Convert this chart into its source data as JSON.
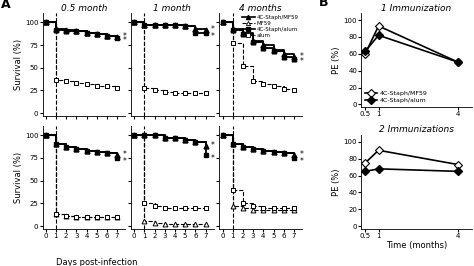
{
  "col_titles": [
    "0.5 month",
    "1 month",
    "4 months"
  ],
  "days": [
    0,
    1,
    2,
    3,
    4,
    5,
    6,
    7
  ],
  "survival_top": {
    "col0": {
      "4C_MF59": [
        100,
        93,
        92,
        90,
        88,
        87,
        85,
        84
      ],
      "MF59": [
        100,
        92,
        91,
        90,
        88,
        87,
        85,
        84
      ],
      "4C_alum": [
        100,
        92,
        91,
        90,
        88,
        87,
        85,
        83
      ],
      "alum": [
        100,
        37,
        35,
        33,
        32,
        30,
        30,
        28
      ]
    },
    "col1": {
      "4C_MF59": [
        100,
        97,
        97,
        97,
        97,
        96,
        93,
        92
      ],
      "MF59": [
        100,
        97,
        97,
        97,
        97,
        96,
        93,
        92
      ],
      "4C_alum": [
        100,
        97,
        97,
        97,
        97,
        96,
        88,
        88
      ],
      "alum": [
        100,
        28,
        25,
        23,
        22,
        22,
        22,
        22
      ]
    },
    "col2": {
      "4C_MF59": [
        100,
        93,
        88,
        80,
        75,
        70,
        65,
        62
      ],
      "MF59": [
        100,
        92,
        87,
        78,
        72,
        68,
        62,
        60
      ],
      "4C_alum": [
        100,
        92,
        87,
        78,
        72,
        68,
        62,
        60
      ],
      "alum": [
        100,
        77,
        52,
        35,
        32,
        30,
        27,
        25
      ]
    }
  },
  "survival_bot": {
    "col0": {
      "4C_MF59": [
        100,
        90,
        87,
        85,
        83,
        82,
        80,
        78
      ],
      "4C_alum": [
        100,
        90,
        87,
        85,
        83,
        82,
        80,
        75
      ],
      "MF59": [
        100,
        13,
        11,
        10,
        10,
        10,
        10,
        10
      ],
      "alum": [
        100,
        13,
        11,
        10,
        10,
        10,
        10,
        10
      ]
    },
    "col1": {
      "4C_MF59": [
        100,
        100,
        100,
        97,
        97,
        95,
        93,
        88
      ],
      "4C_alum": [
        100,
        100,
        100,
        97,
        97,
        95,
        93,
        78
      ],
      "MF59": [
        100,
        5,
        3,
        2,
        2,
        2,
        2,
        2
      ],
      "alum": [
        100,
        25,
        22,
        20,
        20,
        20,
        20,
        20
      ]
    },
    "col2": {
      "4C_MF59": [
        100,
        90,
        87,
        85,
        83,
        82,
        80,
        78
      ],
      "4C_alum": [
        100,
        90,
        87,
        85,
        83,
        82,
        80,
        75
      ],
      "MF59": [
        100,
        22,
        20,
        18,
        18,
        18,
        18,
        18
      ],
      "alum": [
        100,
        40,
        25,
        22,
        20,
        20,
        20,
        20
      ]
    }
  },
  "pe_1imm": {
    "time": [
      0.5,
      1,
      4
    ],
    "MF59": [
      60,
      93,
      50
    ],
    "alum": [
      63,
      82,
      50
    ]
  },
  "pe_2imm": {
    "time": [
      0.5,
      1,
      4
    ],
    "MF59": [
      75,
      90,
      73
    ],
    "alum": [
      65,
      68,
      65
    ]
  },
  "bg_color": "white"
}
